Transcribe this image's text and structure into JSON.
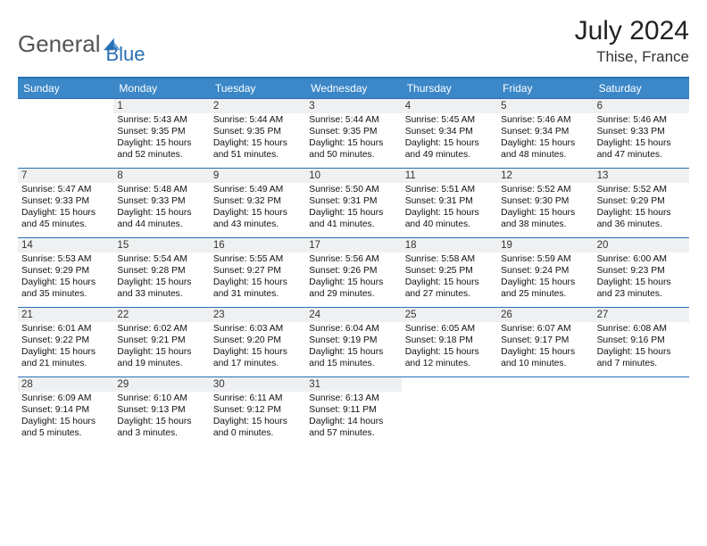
{
  "logo": {
    "word1": "General",
    "word2": "Blue"
  },
  "title": "July 2024",
  "location": "Thise, France",
  "day_headers": [
    "Sunday",
    "Monday",
    "Tuesday",
    "Wednesday",
    "Thursday",
    "Friday",
    "Saturday"
  ],
  "colors": {
    "header_bg": "#3b87c8",
    "border": "#2a6fb5",
    "daynum_bg": "#eef0f2",
    "logo_gray": "#555555",
    "logo_blue": "#2a6fb5"
  },
  "weeks": [
    [
      null,
      {
        "n": "1",
        "sr": "5:43 AM",
        "ss": "9:35 PM",
        "dl": "15 hours and 52 minutes."
      },
      {
        "n": "2",
        "sr": "5:44 AM",
        "ss": "9:35 PM",
        "dl": "15 hours and 51 minutes."
      },
      {
        "n": "3",
        "sr": "5:44 AM",
        "ss": "9:35 PM",
        "dl": "15 hours and 50 minutes."
      },
      {
        "n": "4",
        "sr": "5:45 AM",
        "ss": "9:34 PM",
        "dl": "15 hours and 49 minutes."
      },
      {
        "n": "5",
        "sr": "5:46 AM",
        "ss": "9:34 PM",
        "dl": "15 hours and 48 minutes."
      },
      {
        "n": "6",
        "sr": "5:46 AM",
        "ss": "9:33 PM",
        "dl": "15 hours and 47 minutes."
      }
    ],
    [
      {
        "n": "7",
        "sr": "5:47 AM",
        "ss": "9:33 PM",
        "dl": "15 hours and 45 minutes."
      },
      {
        "n": "8",
        "sr": "5:48 AM",
        "ss": "9:33 PM",
        "dl": "15 hours and 44 minutes."
      },
      {
        "n": "9",
        "sr": "5:49 AM",
        "ss": "9:32 PM",
        "dl": "15 hours and 43 minutes."
      },
      {
        "n": "10",
        "sr": "5:50 AM",
        "ss": "9:31 PM",
        "dl": "15 hours and 41 minutes."
      },
      {
        "n": "11",
        "sr": "5:51 AM",
        "ss": "9:31 PM",
        "dl": "15 hours and 40 minutes."
      },
      {
        "n": "12",
        "sr": "5:52 AM",
        "ss": "9:30 PM",
        "dl": "15 hours and 38 minutes."
      },
      {
        "n": "13",
        "sr": "5:52 AM",
        "ss": "9:29 PM",
        "dl": "15 hours and 36 minutes."
      }
    ],
    [
      {
        "n": "14",
        "sr": "5:53 AM",
        "ss": "9:29 PM",
        "dl": "15 hours and 35 minutes."
      },
      {
        "n": "15",
        "sr": "5:54 AM",
        "ss": "9:28 PM",
        "dl": "15 hours and 33 minutes."
      },
      {
        "n": "16",
        "sr": "5:55 AM",
        "ss": "9:27 PM",
        "dl": "15 hours and 31 minutes."
      },
      {
        "n": "17",
        "sr": "5:56 AM",
        "ss": "9:26 PM",
        "dl": "15 hours and 29 minutes."
      },
      {
        "n": "18",
        "sr": "5:58 AM",
        "ss": "9:25 PM",
        "dl": "15 hours and 27 minutes."
      },
      {
        "n": "19",
        "sr": "5:59 AM",
        "ss": "9:24 PM",
        "dl": "15 hours and 25 minutes."
      },
      {
        "n": "20",
        "sr": "6:00 AM",
        "ss": "9:23 PM",
        "dl": "15 hours and 23 minutes."
      }
    ],
    [
      {
        "n": "21",
        "sr": "6:01 AM",
        "ss": "9:22 PM",
        "dl": "15 hours and 21 minutes."
      },
      {
        "n": "22",
        "sr": "6:02 AM",
        "ss": "9:21 PM",
        "dl": "15 hours and 19 minutes."
      },
      {
        "n": "23",
        "sr": "6:03 AM",
        "ss": "9:20 PM",
        "dl": "15 hours and 17 minutes."
      },
      {
        "n": "24",
        "sr": "6:04 AM",
        "ss": "9:19 PM",
        "dl": "15 hours and 15 minutes."
      },
      {
        "n": "25",
        "sr": "6:05 AM",
        "ss": "9:18 PM",
        "dl": "15 hours and 12 minutes."
      },
      {
        "n": "26",
        "sr": "6:07 AM",
        "ss": "9:17 PM",
        "dl": "15 hours and 10 minutes."
      },
      {
        "n": "27",
        "sr": "6:08 AM",
        "ss": "9:16 PM",
        "dl": "15 hours and 7 minutes."
      }
    ],
    [
      {
        "n": "28",
        "sr": "6:09 AM",
        "ss": "9:14 PM",
        "dl": "15 hours and 5 minutes."
      },
      {
        "n": "29",
        "sr": "6:10 AM",
        "ss": "9:13 PM",
        "dl": "15 hours and 3 minutes."
      },
      {
        "n": "30",
        "sr": "6:11 AM",
        "ss": "9:12 PM",
        "dl": "15 hours and 0 minutes."
      },
      {
        "n": "31",
        "sr": "6:13 AM",
        "ss": "9:11 PM",
        "dl": "14 hours and 57 minutes."
      },
      null,
      null,
      null
    ]
  ],
  "labels": {
    "sunrise": "Sunrise:",
    "sunset": "Sunset:",
    "daylight": "Daylight:"
  }
}
